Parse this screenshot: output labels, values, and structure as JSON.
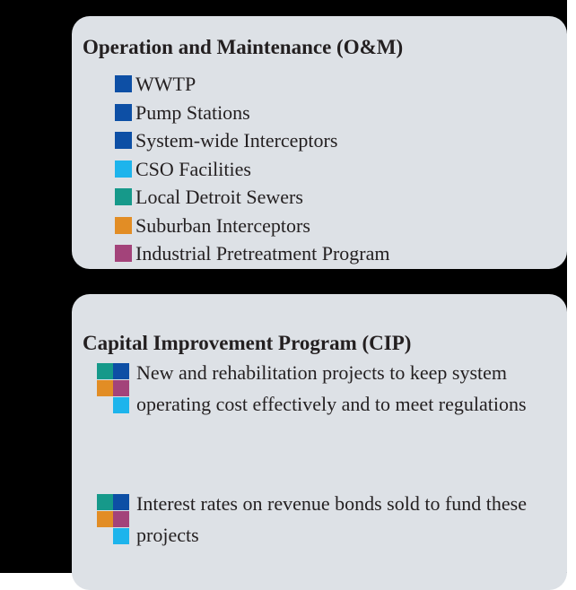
{
  "sections": [
    {
      "title": "Operation and Maintenance (O&M)",
      "items": [
        {
          "label": "WWTP",
          "color": "#0d4fa5"
        },
        {
          "label": "Pump Stations",
          "color": "#0d4fa5"
        },
        {
          "label": "System-wide Interceptors",
          "color": "#0d4fa5"
        },
        {
          "label": "CSO Facilities",
          "color": "#1db4ec"
        },
        {
          "label": "Local Detroit Sewers",
          "color": "#16998a"
        },
        {
          "label": "Suburban Interceptors",
          "color": "#e28d25"
        },
        {
          "label": "Industrial Pretreatment Program",
          "color": "#a3437a"
        }
      ]
    },
    {
      "title": "Capital Improvement Program (CIP)",
      "items": [
        {
          "label": "New and rehabilitation projects to keep system operating cost effectively and to meet regulations"
        },
        {
          "label": "Interest rates on revenue bonds sold to fund these projects"
        }
      ]
    }
  ]
}
